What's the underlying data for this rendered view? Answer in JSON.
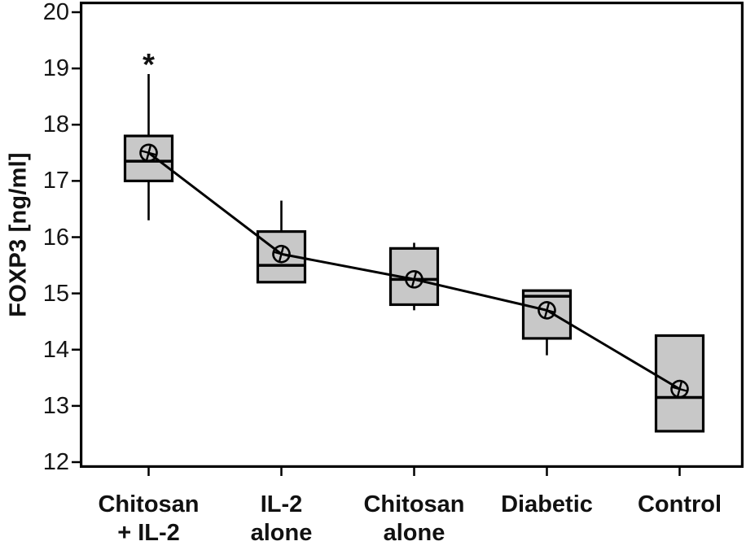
{
  "chart_data": {
    "type": "boxplot",
    "title": "",
    "xlabel": "",
    "ylabel": "FOXP3 [ng/ml]",
    "ylim": [
      12,
      20
    ],
    "yticks": [
      12,
      13,
      14,
      15,
      16,
      17,
      18,
      19,
      20
    ],
    "grid": false,
    "frame": true,
    "legend": "none",
    "categories": [
      "Chitosan + IL-2",
      "IL-2 alone",
      "Chitosan alone",
      "Diabetic",
      "Control"
    ],
    "categories_lines": [
      [
        "Chitosan",
        "+ IL-2"
      ],
      [
        "IL-2",
        "alone"
      ],
      [
        "Chitosan",
        "alone"
      ],
      [
        "Diabetic"
      ],
      [
        "Control"
      ]
    ],
    "boxes": [
      {
        "label": "Chitosan + IL-2",
        "whisker_low": 16.3,
        "q1": 17.0,
        "median": 17.35,
        "q3": 17.8,
        "whisker_high": 18.9,
        "mean": 17.5,
        "annotation": "*"
      },
      {
        "label": "IL-2 alone",
        "whisker_low": 15.2,
        "q1": 15.2,
        "median": 15.5,
        "q3": 16.1,
        "whisker_high": 16.65,
        "mean": 15.7,
        "annotation": ""
      },
      {
        "label": "Chitosan alone",
        "whisker_low": 14.7,
        "q1": 14.8,
        "median": 15.25,
        "q3": 15.8,
        "whisker_high": 15.9,
        "mean": 15.25,
        "annotation": ""
      },
      {
        "label": "Diabetic",
        "whisker_low": 13.9,
        "q1": 14.2,
        "median": 14.95,
        "q3": 15.05,
        "whisker_high": 15.05,
        "mean": 14.7,
        "annotation": ""
      },
      {
        "label": "Control",
        "whisker_low": 12.55,
        "q1": 12.55,
        "median": 13.15,
        "q3": 14.25,
        "whisker_high": 14.25,
        "mean": 13.3,
        "annotation": ""
      }
    ],
    "mean_line": {
      "connects": "means",
      "values": [
        17.5,
        15.7,
        15.25,
        14.7,
        13.3
      ]
    },
    "style": {
      "box_fill": "#c8c8c8",
      "box_border": "#000000",
      "line_color": "#000000",
      "mean_marker": "circle-plus",
      "background": "#ffffff"
    }
  }
}
